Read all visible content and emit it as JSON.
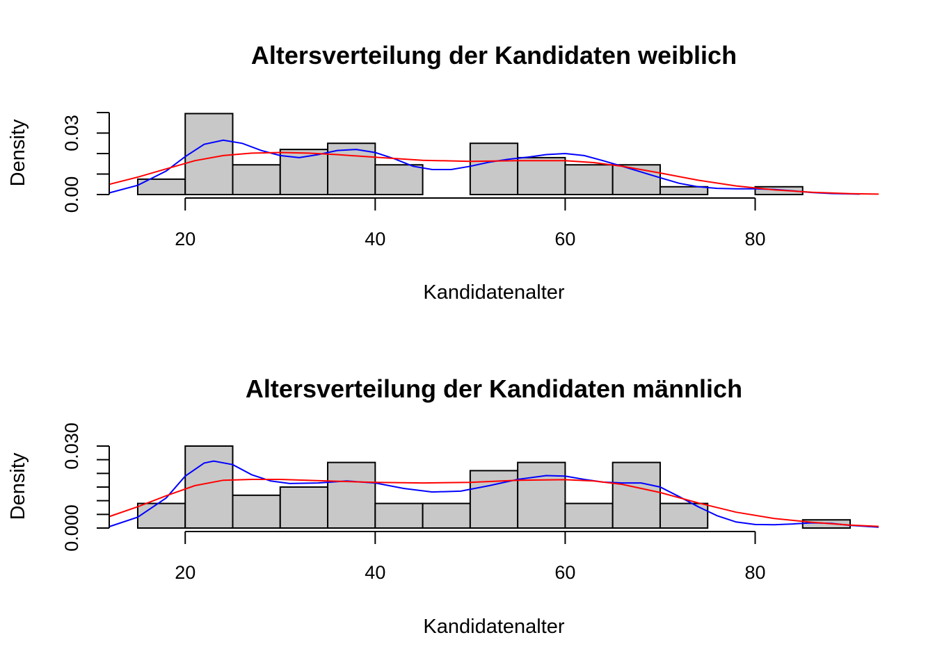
{
  "chart_data": [
    {
      "type": "bar",
      "title": "Altersverteilung der Kandidaten weiblich",
      "xlabel": "Kandidatenalter",
      "ylabel": "Density",
      "xlim": [
        12,
        93
      ],
      "ylim": [
        0,
        0.04
      ],
      "x_ticks": [
        20,
        40,
        60,
        80
      ],
      "x_tick_labels": [
        "20",
        "40",
        "60",
        "80"
      ],
      "y_ticks": [
        0,
        0.01,
        0.02,
        0.03,
        0.04
      ],
      "y_tick_labels": [
        "0.00",
        "0.03"
      ],
      "grid": false,
      "bins": [
        {
          "from": 15,
          "to": 20,
          "density": 0.0075
        },
        {
          "from": 20,
          "to": 25,
          "density": 0.0395
        },
        {
          "from": 25,
          "to": 30,
          "density": 0.0145
        },
        {
          "from": 30,
          "to": 35,
          "density": 0.022
        },
        {
          "from": 35,
          "to": 40,
          "density": 0.025
        },
        {
          "from": 40,
          "to": 45,
          "density": 0.0145
        },
        {
          "from": 45,
          "to": 50,
          "density": 0
        },
        {
          "from": 50,
          "to": 55,
          "density": 0.025
        },
        {
          "from": 55,
          "to": 60,
          "density": 0.018
        },
        {
          "from": 60,
          "to": 65,
          "density": 0.0145
        },
        {
          "from": 65,
          "to": 70,
          "density": 0.0145
        },
        {
          "from": 70,
          "to": 75,
          "density": 0.0038
        },
        {
          "from": 75,
          "to": 80,
          "density": 0
        },
        {
          "from": 80,
          "to": 85,
          "density": 0.0038
        },
        {
          "from": 85,
          "to": 90,
          "density": 0
        }
      ],
      "series": [
        {
          "color": "#0000ff",
          "x": [
            12,
            15,
            18,
            20,
            22,
            24,
            26,
            28,
            30,
            32,
            34,
            36,
            38,
            40,
            42,
            44,
            46,
            48,
            50,
            52,
            54,
            56,
            58,
            60,
            62,
            64,
            66,
            68,
            70,
            72,
            74,
            76,
            78,
            80,
            82,
            84,
            86,
            88,
            91
          ],
          "y": [
            0.0008,
            0.0045,
            0.0115,
            0.0185,
            0.0245,
            0.0265,
            0.025,
            0.0215,
            0.019,
            0.018,
            0.0195,
            0.0215,
            0.022,
            0.0205,
            0.0175,
            0.0138,
            0.0122,
            0.0122,
            0.0138,
            0.0158,
            0.0172,
            0.0182,
            0.0195,
            0.02,
            0.019,
            0.0165,
            0.0138,
            0.011,
            0.0082,
            0.0055,
            0.0038,
            0.003,
            0.0028,
            0.0028,
            0.0025,
            0.0018,
            0.001,
            0.0005,
            0.0002
          ]
        },
        {
          "color": "#ff0000",
          "x": [
            12,
            15,
            18,
            21,
            24,
            27,
            30,
            33,
            36,
            40,
            45,
            50,
            55,
            60,
            63,
            66,
            70,
            74,
            78,
            82,
            86,
            90,
            93
          ],
          "y": [
            0.005,
            0.0085,
            0.0125,
            0.0165,
            0.019,
            0.0202,
            0.0205,
            0.0202,
            0.0195,
            0.0182,
            0.0167,
            0.0162,
            0.0165,
            0.0165,
            0.0156,
            0.0138,
            0.0105,
            0.007,
            0.0042,
            0.0023,
            0.0011,
            0.0004,
            0.0002
          ]
        }
      ]
    },
    {
      "type": "bar",
      "title": "Altersverteilung der Kandidaten männlich",
      "xlabel": "Kandidatenalter",
      "ylabel": "Density",
      "xlim": [
        12,
        93
      ],
      "ylim": [
        0,
        0.03
      ],
      "x_ticks": [
        20,
        40,
        60,
        80
      ],
      "x_tick_labels": [
        "20",
        "40",
        "60",
        "80"
      ],
      "y_ticks": [
        0,
        0.005,
        0.01,
        0.015,
        0.02,
        0.025,
        0.03
      ],
      "y_tick_labels": [
        "0.000",
        "0.030"
      ],
      "grid": false,
      "bins": [
        {
          "from": 15,
          "to": 20,
          "density": 0.009
        },
        {
          "from": 20,
          "to": 25,
          "density": 0.03
        },
        {
          "from": 25,
          "to": 30,
          "density": 0.012
        },
        {
          "from": 30,
          "to": 35,
          "density": 0.015
        },
        {
          "from": 35,
          "to": 40,
          "density": 0.024
        },
        {
          "from": 40,
          "to": 45,
          "density": 0.009
        },
        {
          "from": 45,
          "to": 50,
          "density": 0.009
        },
        {
          "from": 50,
          "to": 55,
          "density": 0.021
        },
        {
          "from": 55,
          "to": 60,
          "density": 0.024
        },
        {
          "from": 60,
          "to": 65,
          "density": 0.009
        },
        {
          "from": 65,
          "to": 70,
          "density": 0.024
        },
        {
          "from": 70,
          "to": 75,
          "density": 0.009
        },
        {
          "from": 75,
          "to": 80,
          "density": 0
        },
        {
          "from": 80,
          "to": 85,
          "density": 0
        },
        {
          "from": 85,
          "to": 90,
          "density": 0.003
        }
      ],
      "series": [
        {
          "color": "#0000ff",
          "x": [
            12,
            15,
            18,
            20,
            22,
            23,
            25,
            27,
            29,
            31,
            34,
            37,
            40,
            43,
            46,
            49,
            52,
            55,
            58,
            60,
            62,
            64,
            66,
            68,
            70,
            72,
            74,
            76,
            78,
            80,
            82,
            84,
            86,
            88,
            90,
            93
          ],
          "y": [
            0.0005,
            0.004,
            0.011,
            0.019,
            0.0238,
            0.0245,
            0.0232,
            0.0195,
            0.0172,
            0.0163,
            0.0165,
            0.0172,
            0.0165,
            0.0145,
            0.0132,
            0.0135,
            0.0155,
            0.0178,
            0.0192,
            0.019,
            0.0178,
            0.0168,
            0.0165,
            0.0165,
            0.015,
            0.0115,
            0.0078,
            0.0045,
            0.0022,
            0.0013,
            0.0012,
            0.0015,
            0.0019,
            0.0017,
            0.001,
            0.0003
          ]
        },
        {
          "color": "#ff0000",
          "x": [
            12,
            15,
            18,
            21,
            24,
            27,
            30,
            35,
            40,
            45,
            50,
            55,
            60,
            63,
            66,
            70,
            74,
            78,
            82,
            86,
            90,
            93
          ],
          "y": [
            0.0042,
            0.0078,
            0.0118,
            0.0155,
            0.0175,
            0.0178,
            0.0178,
            0.0172,
            0.0167,
            0.0165,
            0.0167,
            0.0175,
            0.0177,
            0.0172,
            0.016,
            0.013,
            0.0092,
            0.0058,
            0.0035,
            0.0021,
            0.0011,
            0.0006
          ]
        }
      ]
    }
  ]
}
